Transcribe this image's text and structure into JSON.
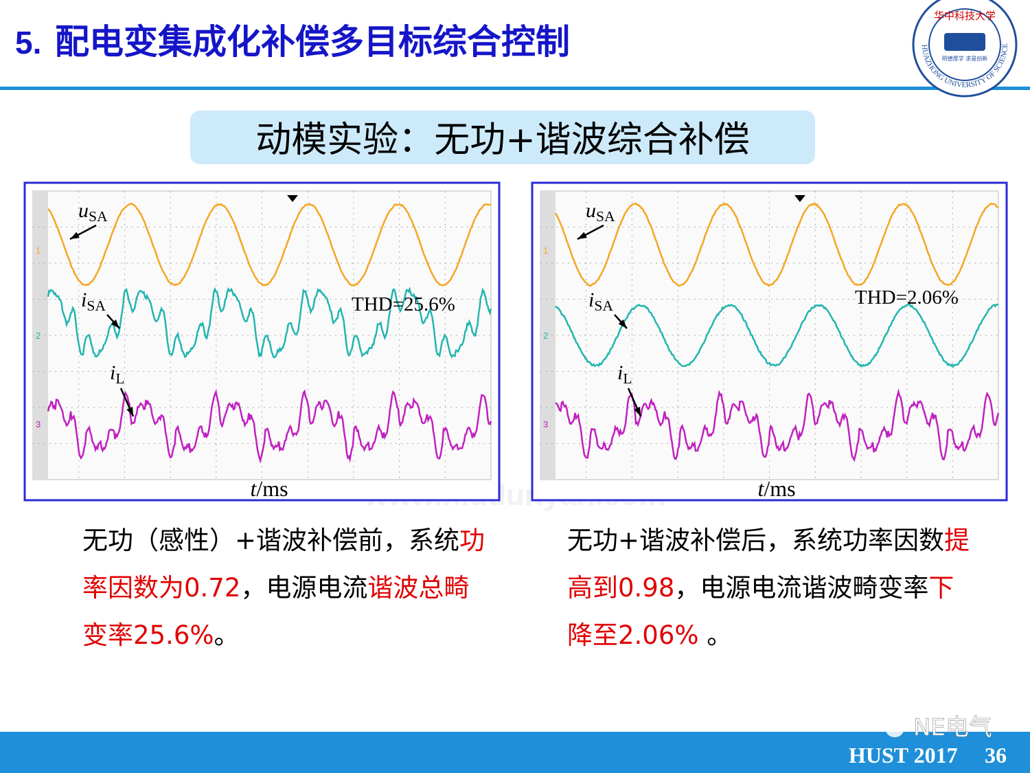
{
  "header": {
    "number": "5.",
    "title": "配电变集成化补偿多目标综合控制"
  },
  "logo": {
    "name": "华中科技大学",
    "english": "HUAZHONG UNIVERSITY OF SCIENCE AND TECHNOLOGY",
    "motto": "明德厚学 求是创新"
  },
  "subtitle": "动模实验：无功+谐波综合补偿",
  "panels": [
    {
      "u_label": {
        "symbol": "u",
        "subscript": "SA"
      },
      "i_label": {
        "symbol": "i",
        "subscript": "SA"
      },
      "l_label": {
        "symbol": "i",
        "subscript": "L"
      },
      "channels": [
        "1",
        "2",
        "3"
      ],
      "thd": "THD=25.6%",
      "x_label": {
        "symbol": "t",
        "unit": "/ms"
      },
      "compensated": false,
      "caption": [
        {
          "text": "无功（感性）+谐波补偿前，系统",
          "emphasis": false
        },
        {
          "text": "功率因数为0.72",
          "emphasis": true
        },
        {
          "text": "，电源电流",
          "emphasis": false
        },
        {
          "text": "谐波总畸变率25.6%",
          "emphasis": true
        },
        {
          "text": "。",
          "emphasis": false
        }
      ]
    },
    {
      "u_label": {
        "symbol": "u",
        "subscript": "SA"
      },
      "i_label": {
        "symbol": "i",
        "subscript": "SA"
      },
      "l_label": {
        "symbol": "i",
        "subscript": "L"
      },
      "channels": [
        "1",
        "2",
        "3"
      ],
      "thd": "THD=2.06%",
      "x_label": {
        "symbol": "t",
        "unit": "/ms"
      },
      "compensated": true,
      "caption": [
        {
          "text": "无功+谐波补偿后，系统功率因数",
          "emphasis": false
        },
        {
          "text": "提高到0.98",
          "emphasis": true
        },
        {
          "text": "，电源电流谐波畸变率",
          "emphasis": false
        },
        {
          "text": "下降至2.06%",
          "emphasis": true
        },
        {
          "text": " 。",
          "emphasis": false
        }
      ]
    }
  ],
  "watermark": "www.niudunyan.com",
  "footer": {
    "brand": "NE电气",
    "org": "HUST 2017",
    "page": "36"
  }
}
